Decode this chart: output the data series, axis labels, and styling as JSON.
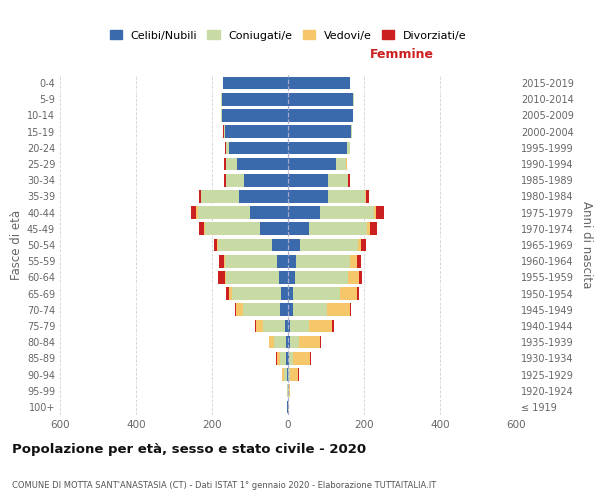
{
  "age_groups": [
    "100+",
    "95-99",
    "90-94",
    "85-89",
    "80-84",
    "75-79",
    "70-74",
    "65-69",
    "60-64",
    "55-59",
    "50-54",
    "45-49",
    "40-44",
    "35-39",
    "30-34",
    "25-29",
    "20-24",
    "15-19",
    "10-14",
    "5-9",
    "0-4"
  ],
  "birth_years": [
    "≤ 1919",
    "1920-1924",
    "1925-1929",
    "1930-1934",
    "1935-1939",
    "1940-1944",
    "1945-1949",
    "1950-1954",
    "1955-1959",
    "1960-1964",
    "1965-1969",
    "1970-1974",
    "1975-1979",
    "1980-1984",
    "1985-1989",
    "1990-1994",
    "1995-1999",
    "2000-2004",
    "2005-2009",
    "2010-2014",
    "2015-2019"
  ],
  "males_celibi": [
    2,
    1,
    3,
    4,
    5,
    8,
    20,
    18,
    25,
    28,
    42,
    75,
    100,
    130,
    115,
    135,
    155,
    165,
    175,
    175,
    170
  ],
  "males_coniugati": [
    1,
    2,
    8,
    18,
    32,
    58,
    98,
    130,
    138,
    138,
    142,
    143,
    138,
    98,
    48,
    28,
    8,
    4,
    1,
    1,
    1
  ],
  "males_vedovi": [
    0,
    0,
    4,
    8,
    12,
    18,
    18,
    8,
    4,
    3,
    4,
    4,
    4,
    2,
    1,
    1,
    1,
    0,
    0,
    0,
    0
  ],
  "males_divorziati": [
    0,
    0,
    1,
    1,
    2,
    2,
    4,
    8,
    18,
    13,
    8,
    13,
    13,
    4,
    4,
    4,
    1,
    1,
    0,
    0,
    0
  ],
  "females_nubili": [
    1,
    1,
    1,
    2,
    4,
    6,
    12,
    12,
    18,
    22,
    32,
    55,
    85,
    105,
    105,
    125,
    155,
    165,
    170,
    172,
    162
  ],
  "females_coniugate": [
    1,
    1,
    4,
    12,
    25,
    50,
    90,
    125,
    140,
    142,
    152,
    152,
    142,
    98,
    52,
    28,
    8,
    4,
    1,
    1,
    1
  ],
  "females_vedove": [
    1,
    4,
    22,
    45,
    55,
    60,
    60,
    45,
    30,
    17,
    8,
    8,
    4,
    2,
    1,
    1,
    0,
    0,
    0,
    0,
    0
  ],
  "females_divorziate": [
    0,
    0,
    1,
    1,
    2,
    4,
    4,
    4,
    8,
    12,
    12,
    18,
    22,
    8,
    4,
    1,
    1,
    0,
    0,
    0,
    0
  ],
  "color_celibi": "#3a6aab",
  "color_coniugati": "#c8dba4",
  "color_vedovi": "#f5c76a",
  "color_divorziati": "#cc2020",
  "xlim": 600,
  "xticks": [
    -600,
    -400,
    -200,
    0,
    200,
    400,
    600
  ],
  "xticklabels": [
    "600",
    "400",
    "200",
    "0",
    "200",
    "400",
    "600"
  ],
  "title": "Popolazione per età, sesso e stato civile - 2020",
  "subtitle": "COMUNE DI MOTTA SANT'ANASTASIA (CT) - Dati ISTAT 1° gennaio 2020 - Elaborazione TUTTAITALIA.IT",
  "ylabel_left": "Fasce di età",
  "ylabel_right": "Anni di nascita",
  "label_femmine": "Femmine",
  "legend_labels": [
    "Celibi/Nubili",
    "Coniugati/e",
    "Vedovi/e",
    "Divorziati/e"
  ],
  "bg_color": "#ffffff",
  "grid_color": "#cccccc"
}
